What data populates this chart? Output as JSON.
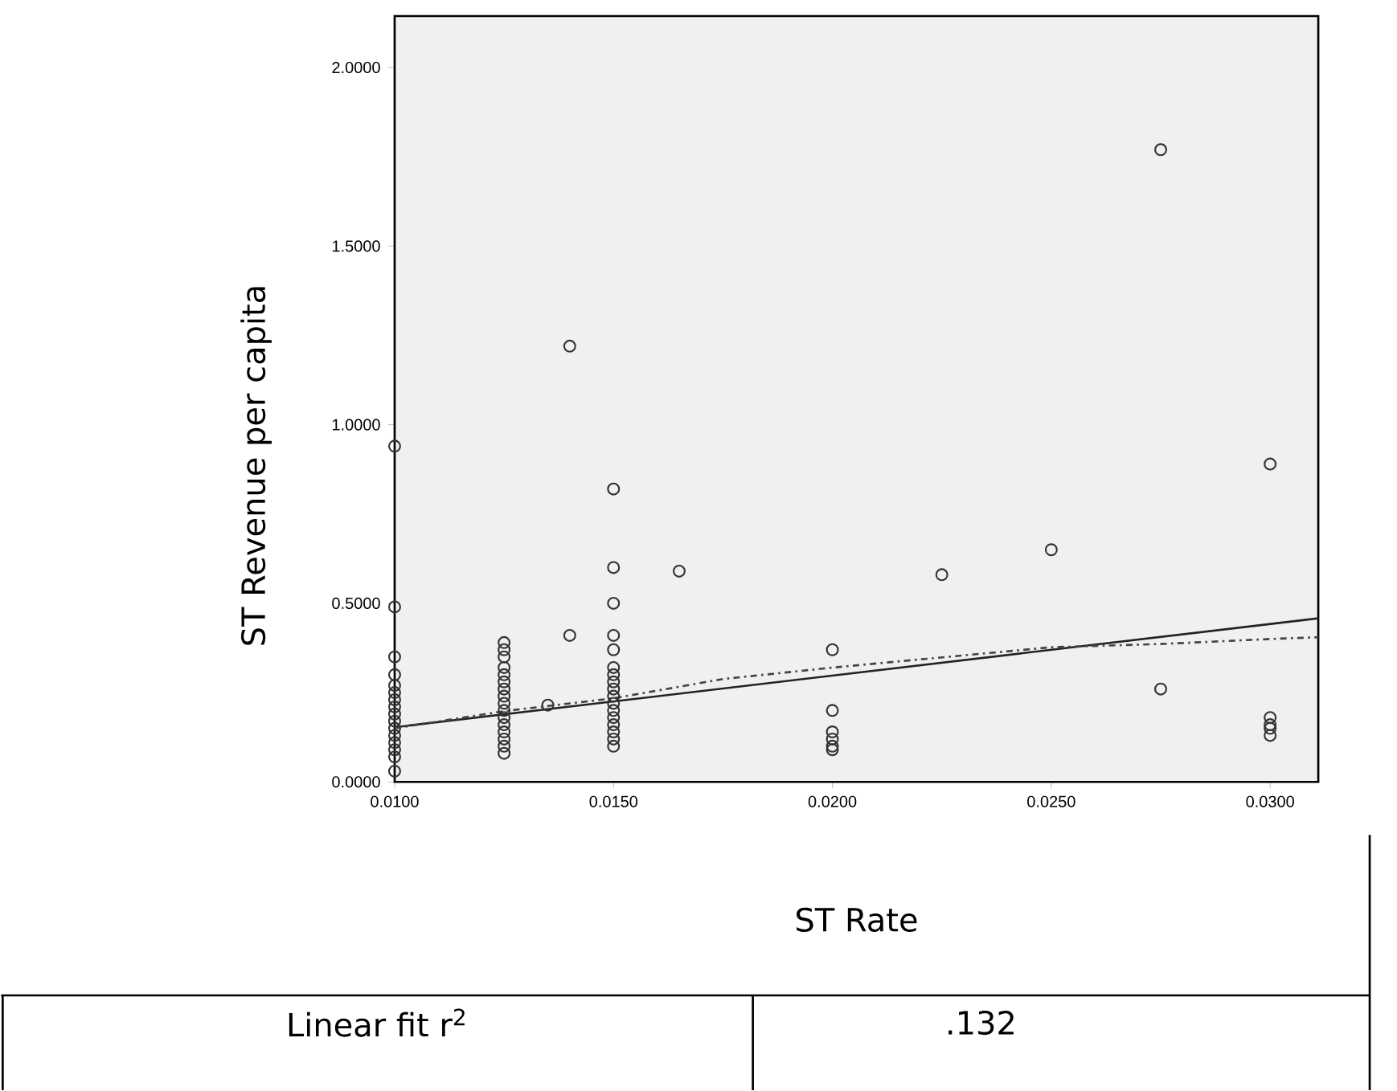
{
  "chart_data": {
    "type": "scatter",
    "xlabel": "ST Rate",
    "ylabel": "ST Revenue per capita",
    "xlim": [
      0.01,
      0.0311
    ],
    "ylim": [
      0,
      2.144
    ],
    "xticks": [
      {
        "value": 0.01,
        "label": "0.0100"
      },
      {
        "value": 0.015,
        "label": "0.0150"
      },
      {
        "value": 0.02,
        "label": "0.0200"
      },
      {
        "value": 0.025,
        "label": "0.0250"
      },
      {
        "value": 0.03,
        "label": "0.0300"
      }
    ],
    "yticks": [
      {
        "value": 0,
        "label": "0.0000"
      },
      {
        "value": 0.5,
        "label": "0.5000"
      },
      {
        "value": 1,
        "label": "1.0000"
      },
      {
        "value": 1.5,
        "label": "1.5000"
      },
      {
        "value": 2,
        "label": "2.0000"
      }
    ],
    "marker": "circle",
    "series": [
      {
        "color": "#333333",
        "x": [
          0.01,
          0.01,
          0.01,
          0.01,
          0.01,
          0.01,
          0.01,
          0.01,
          0.01,
          0.01,
          0.01,
          0.01,
          0.01,
          0.01,
          0.01,
          0.01,
          0.0125,
          0.0125,
          0.0125,
          0.0125,
          0.0125,
          0.0125,
          0.0125,
          0.0125,
          0.0125,
          0.0125,
          0.0125,
          0.0125,
          0.0125,
          0.0125,
          0.0125,
          0.0125,
          0.0135,
          0.014,
          0.014,
          0.015,
          0.015,
          0.015,
          0.015,
          0.015,
          0.015,
          0.015,
          0.015,
          0.015,
          0.015,
          0.015,
          0.015,
          0.015,
          0.015,
          0.015,
          0.015,
          0.015,
          0.0165,
          0.02,
          0.02,
          0.02,
          0.02,
          0.02,
          0.02,
          0.0225,
          0.025,
          0.0275,
          0.0275,
          0.03,
          0.03,
          0.03,
          0.03,
          0.03
        ],
        "values": [
          0.94,
          0.49,
          0.35,
          0.3,
          0.27,
          0.25,
          0.23,
          0.21,
          0.19,
          0.17,
          0.15,
          0.13,
          0.11,
          0.09,
          0.07,
          0.03,
          0.39,
          0.37,
          0.35,
          0.32,
          0.3,
          0.28,
          0.26,
          0.24,
          0.22,
          0.2,
          0.18,
          0.16,
          0.14,
          0.12,
          0.1,
          0.08,
          0.215,
          0.41,
          1.22,
          0.82,
          0.6,
          0.5,
          0.41,
          0.37,
          0.32,
          0.3,
          0.28,
          0.26,
          0.24,
          0.22,
          0.2,
          0.18,
          0.16,
          0.14,
          0.12,
          0.1,
          0.59,
          0.37,
          0.2,
          0.14,
          0.12,
          0.1,
          0.09,
          0.58,
          0.65,
          1.77,
          0.26,
          0.89,
          0.18,
          0.16,
          0.15,
          0.13
        ]
      },
      {
        "type": "line",
        "marker": "none",
        "color": "#222222",
        "line_style": "solid",
        "x": [
          0.01,
          0.0311
        ],
        "values": [
          0.153,
          0.458
        ]
      },
      {
        "type": "line",
        "marker": "none",
        "color": "#444444",
        "line_style": "dashed",
        "x": [
          0.01,
          0.0125,
          0.015,
          0.0175,
          0.02,
          0.025,
          0.0275,
          0.03,
          0.0311
        ],
        "values": [
          0.15,
          0.198,
          0.234,
          0.288,
          0.32,
          0.377,
          0.386,
          0.4,
          0.405
        ]
      }
    ],
    "annotations": [
      "Linear fit r$^{2}$",
      ".132"
    ]
  }
}
